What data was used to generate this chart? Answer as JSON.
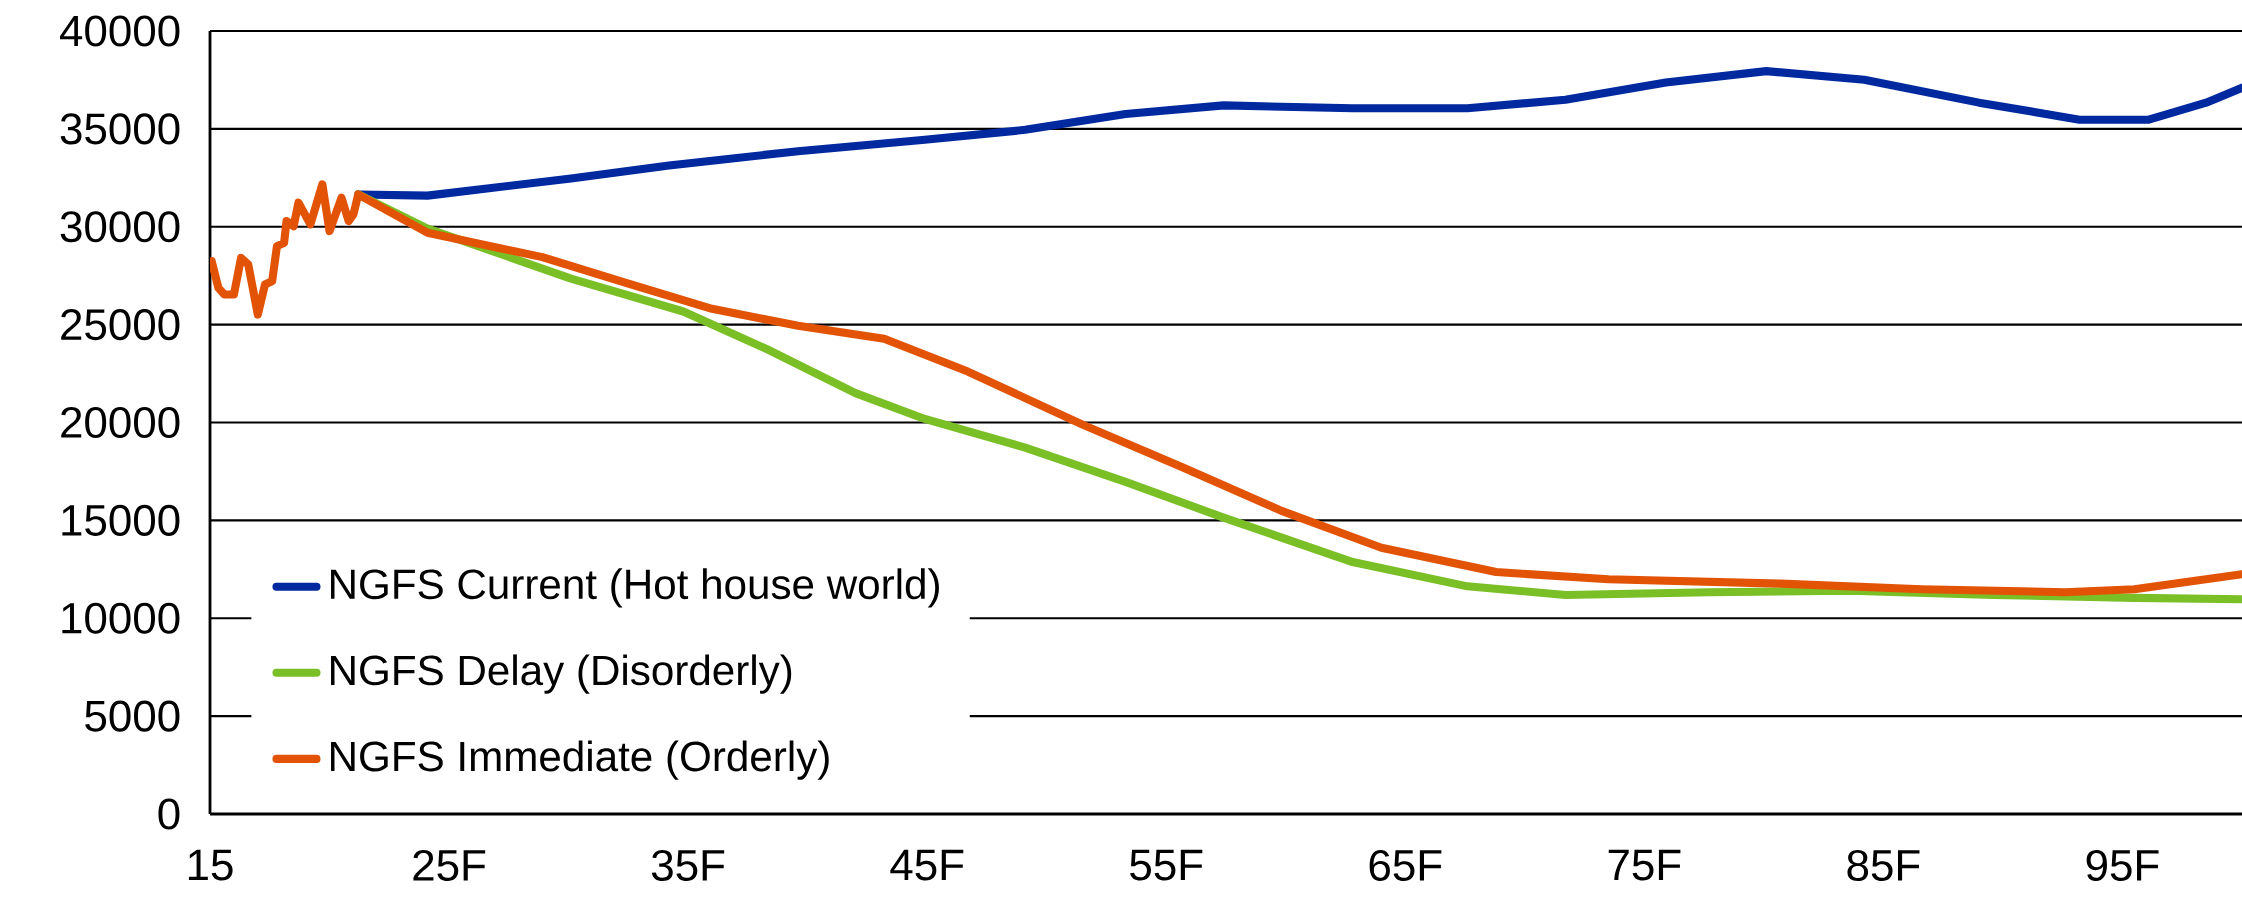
{
  "chart_data": {
    "type": "line",
    "xlim": [
      15,
      100
    ],
    "ylim": [
      0,
      40000
    ],
    "xticks": [
      15,
      {
        "value": 25,
        "label": "25F"
      },
      {
        "value": 35,
        "label": "35F"
      },
      {
        "value": 45,
        "label": "45F"
      },
      {
        "value": 55,
        "label": "55F"
      },
      {
        "value": 65,
        "label": "65F"
      },
      {
        "value": 75,
        "label": "75F"
      },
      {
        "value": 85,
        "label": "85F"
      },
      {
        "value": 95,
        "label": "95F"
      }
    ],
    "yticks": [
      0,
      5000,
      10000,
      15000,
      20000,
      25000,
      30000,
      35000,
      40000
    ],
    "grid": "y",
    "legend": "bottom left",
    "marker": "none",
    "line_style": "solid",
    "series": [
      {
        "name": "NGFS Current (Hot house world)",
        "color": "#0029a0",
        "x": [
          21.2,
          24.1,
          30.1,
          34.2,
          39.6,
          44.9,
          49.1,
          53.3,
          57.4,
          62.8,
          67.6,
          71.7,
          75.9,
          80.1,
          84.2,
          89.0,
          93.2,
          96.1,
          98.5,
          100
        ],
        "values": [
          31650,
          31590,
          32470,
          33130,
          33860,
          34440,
          34950,
          35760,
          36200,
          36050,
          36050,
          36490,
          37370,
          37950,
          37510,
          36340,
          35470,
          35470,
          36340,
          37100
        ]
      },
      {
        "name": "NGFS Delay (Disorderly)",
        "color": "#7abf26",
        "x": [
          21.2,
          24.1,
          30.1,
          34.8,
          38.4,
          42.0,
          44.9,
          49.1,
          53.3,
          57.4,
          62.8,
          67.6,
          71.7,
          77.7,
          83.6,
          89.6,
          95.5,
          100
        ],
        "values": [
          31650,
          29910,
          27350,
          25670,
          23690,
          21500,
          20180,
          18720,
          16970,
          15140,
          12870,
          11630,
          11190,
          11330,
          11410,
          11190,
          11040,
          10970
        ]
      },
      {
        "name": "NGFS Immediate (Orderly)",
        "color": "#e35306",
        "x": [
          15.07,
          15.35,
          15.6,
          16.0,
          16.3,
          16.6,
          17.0,
          17.3,
          17.6,
          17.8,
          18.1,
          18.2,
          18.5,
          18.7,
          19.2,
          19.7,
          20.0,
          20.5,
          20.8,
          21.0,
          21.2,
          24.1,
          28.9,
          32.4,
          36.0,
          39.6,
          43.2,
          46.7,
          51.5,
          55.7,
          59.8,
          64.0,
          68.8,
          73.5,
          80.7,
          86.6,
          92.6,
          95.5,
          100
        ],
        "values": [
          28240,
          26880,
          26540,
          26540,
          28410,
          28070,
          25510,
          27050,
          27220,
          29010,
          29180,
          30290,
          30030,
          31230,
          30120,
          32170,
          29780,
          31480,
          30290,
          30630,
          31650,
          29690,
          28450,
          27130,
          25810,
          24940,
          24280,
          22600,
          19890,
          17700,
          15500,
          13600,
          12360,
          11990,
          11770,
          11480,
          11330,
          11480,
          12250
        ]
      }
    ]
  }
}
